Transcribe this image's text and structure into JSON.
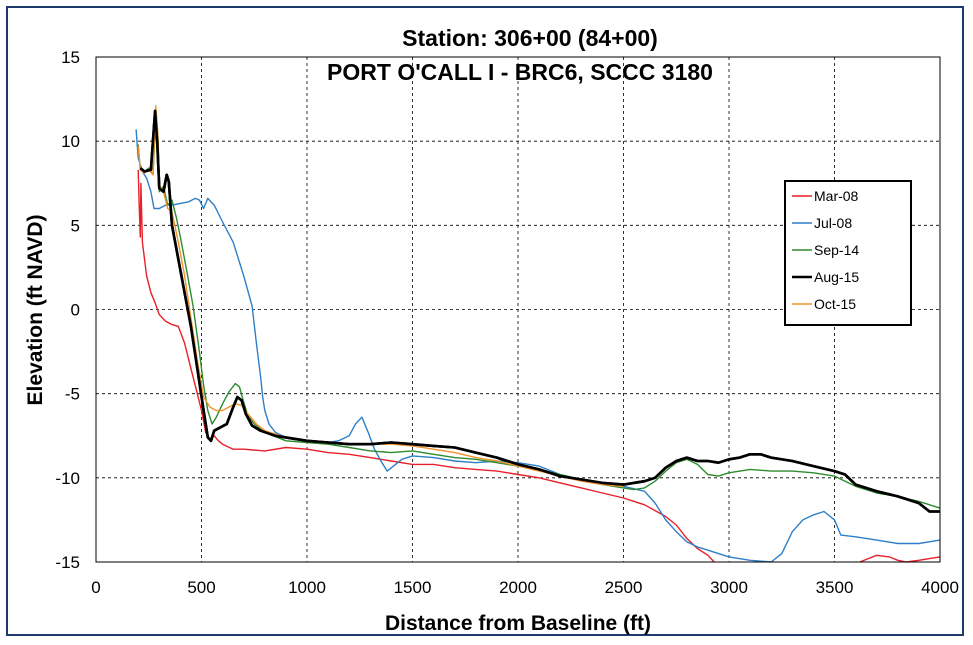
{
  "chart_data": {
    "type": "line",
    "title": "Station:  306+00 (84+00)",
    "subtitle": "PORT O'CALL I - BRC6, SCCC 3180",
    "xlabel": "Distance from Baseline (ft)",
    "ylabel": "Elevation (ft NAVD)",
    "xlim": [
      0,
      4000
    ],
    "ylim": [
      -15,
      15
    ],
    "xticks": [
      0,
      500,
      1000,
      1500,
      2000,
      2500,
      3000,
      3500,
      4000
    ],
    "yticks": [
      -15,
      -10,
      -5,
      0,
      5,
      10,
      15
    ],
    "grid": true,
    "legend_position": "right",
    "series": [
      {
        "name": "Mar-08",
        "color": "#e8202a",
        "width": 1.4,
        "points": [
          [
            200,
            8.3
          ],
          [
            205,
            6.0
          ],
          [
            210,
            4.3
          ],
          [
            213,
            7.5
          ],
          [
            220,
            4.0
          ],
          [
            240,
            2.0
          ],
          [
            260,
            1.0
          ],
          [
            280,
            0.4
          ],
          [
            300,
            -0.3
          ],
          [
            330,
            -0.7
          ],
          [
            360,
            -0.9
          ],
          [
            390,
            -1.0
          ],
          [
            420,
            -2.0
          ],
          [
            450,
            -3.5
          ],
          [
            480,
            -5.0
          ],
          [
            500,
            -6.0
          ],
          [
            520,
            -7.3
          ],
          [
            540,
            -7.7
          ],
          [
            560,
            -7.5
          ],
          [
            580,
            -7.8
          ],
          [
            600,
            -8.0
          ],
          [
            650,
            -8.3
          ],
          [
            700,
            -8.3
          ],
          [
            800,
            -8.4
          ],
          [
            900,
            -8.2
          ],
          [
            1000,
            -8.3
          ],
          [
            1100,
            -8.5
          ],
          [
            1200,
            -8.6
          ],
          [
            1300,
            -8.8
          ],
          [
            1400,
            -9.0
          ],
          [
            1500,
            -9.2
          ],
          [
            1600,
            -9.2
          ],
          [
            1700,
            -9.4
          ],
          [
            1800,
            -9.5
          ],
          [
            1900,
            -9.6
          ],
          [
            2000,
            -9.8
          ],
          [
            2100,
            -10.0
          ],
          [
            2200,
            -10.3
          ],
          [
            2300,
            -10.6
          ],
          [
            2400,
            -10.9
          ],
          [
            2500,
            -11.2
          ],
          [
            2600,
            -11.6
          ],
          [
            2700,
            -12.3
          ],
          [
            2750,
            -12.8
          ],
          [
            2800,
            -13.6
          ],
          [
            2850,
            -14.2
          ],
          [
            2900,
            -14.6
          ],
          [
            2930,
            -15.0
          ]
        ],
        "segments_after": [
          [
            3620,
            -15.0
          ],
          [
            3660,
            -14.8
          ],
          [
            3700,
            -14.6
          ],
          [
            3760,
            -14.7
          ],
          [
            3800,
            -14.9
          ],
          [
            3840,
            -15.0
          ],
          [
            3900,
            -14.9
          ],
          [
            3950,
            -14.8
          ],
          [
            4000,
            -14.7
          ]
        ]
      },
      {
        "name": "Jul-08",
        "color": "#2f7fc8",
        "width": 1.4,
        "points": [
          [
            190,
            10.7
          ],
          [
            200,
            9.0
          ],
          [
            220,
            8.2
          ],
          [
            240,
            7.8
          ],
          [
            260,
            7.0
          ],
          [
            275,
            6.0
          ],
          [
            300,
            6.0
          ],
          [
            330,
            6.2
          ],
          [
            360,
            6.2
          ],
          [
            400,
            6.3
          ],
          [
            440,
            6.4
          ],
          [
            470,
            6.6
          ],
          [
            490,
            6.5
          ],
          [
            510,
            6.0
          ],
          [
            530,
            6.6
          ],
          [
            560,
            6.2
          ],
          [
            600,
            5.2
          ],
          [
            650,
            4.0
          ],
          [
            700,
            2.0
          ],
          [
            740,
            0.2
          ],
          [
            760,
            -2.0
          ],
          [
            780,
            -4.0
          ],
          [
            790,
            -5.2
          ],
          [
            800,
            -6.0
          ],
          [
            820,
            -6.8
          ],
          [
            850,
            -7.3
          ],
          [
            900,
            -7.6
          ],
          [
            1000,
            -7.8
          ],
          [
            1100,
            -7.9
          ],
          [
            1150,
            -7.8
          ],
          [
            1200,
            -7.5
          ],
          [
            1230,
            -6.8
          ],
          [
            1260,
            -6.4
          ],
          [
            1290,
            -7.3
          ],
          [
            1320,
            -8.3
          ],
          [
            1350,
            -9.0
          ],
          [
            1380,
            -9.6
          ],
          [
            1410,
            -9.3
          ],
          [
            1450,
            -8.9
          ],
          [
            1500,
            -8.7
          ],
          [
            1600,
            -8.8
          ],
          [
            1700,
            -9.0
          ],
          [
            1800,
            -9.1
          ],
          [
            1900,
            -9.0
          ],
          [
            2000,
            -9.1
          ],
          [
            2100,
            -9.3
          ],
          [
            2200,
            -9.8
          ],
          [
            2300,
            -10.1
          ],
          [
            2400,
            -10.3
          ],
          [
            2500,
            -10.5
          ],
          [
            2600,
            -10.8
          ],
          [
            2650,
            -11.5
          ],
          [
            2700,
            -12.5
          ],
          [
            2750,
            -13.2
          ],
          [
            2800,
            -13.8
          ],
          [
            2850,
            -14.1
          ],
          [
            2900,
            -14.3
          ],
          [
            2950,
            -14.5
          ],
          [
            3000,
            -14.7
          ],
          [
            3100,
            -14.9
          ],
          [
            3200,
            -15.0
          ],
          [
            3250,
            -14.5
          ],
          [
            3300,
            -13.2
          ],
          [
            3350,
            -12.5
          ],
          [
            3400,
            -12.2
          ],
          [
            3450,
            -12.0
          ],
          [
            3500,
            -12.5
          ],
          [
            3530,
            -13.4
          ],
          [
            3600,
            -13.5
          ],
          [
            3700,
            -13.7
          ],
          [
            3800,
            -13.9
          ],
          [
            3900,
            -13.9
          ],
          [
            4000,
            -13.7
          ]
        ]
      },
      {
        "name": "Sep-14",
        "color": "#2e8b2e",
        "width": 1.4,
        "points": [
          [
            200,
            9.8
          ],
          [
            210,
            8.3
          ],
          [
            230,
            8.2
          ],
          [
            250,
            8.4
          ],
          [
            270,
            8.0
          ],
          [
            285,
            11.8
          ],
          [
            295,
            10.0
          ],
          [
            300,
            7.0
          ],
          [
            320,
            7.3
          ],
          [
            340,
            6.2
          ],
          [
            360,
            6.5
          ],
          [
            380,
            5.5
          ],
          [
            400,
            4.3
          ],
          [
            430,
            2.3
          ],
          [
            460,
            0.2
          ],
          [
            490,
            -2.5
          ],
          [
            510,
            -4.5
          ],
          [
            530,
            -6.0
          ],
          [
            550,
            -6.8
          ],
          [
            570,
            -6.4
          ],
          [
            600,
            -5.6
          ],
          [
            630,
            -4.9
          ],
          [
            660,
            -4.4
          ],
          [
            680,
            -4.6
          ],
          [
            700,
            -5.5
          ],
          [
            720,
            -6.3
          ],
          [
            750,
            -6.8
          ],
          [
            800,
            -7.3
          ],
          [
            900,
            -7.8
          ],
          [
            1000,
            -7.9
          ],
          [
            1100,
            -8.0
          ],
          [
            1200,
            -8.2
          ],
          [
            1300,
            -8.4
          ],
          [
            1400,
            -8.5
          ],
          [
            1500,
            -8.4
          ],
          [
            1600,
            -8.6
          ],
          [
            1700,
            -8.8
          ],
          [
            1800,
            -8.9
          ],
          [
            1900,
            -9.1
          ],
          [
            2000,
            -9.3
          ],
          [
            2100,
            -9.5
          ],
          [
            2200,
            -9.8
          ],
          [
            2300,
            -10.1
          ],
          [
            2400,
            -10.4
          ],
          [
            2500,
            -10.6
          ],
          [
            2550,
            -10.7
          ],
          [
            2600,
            -10.6
          ],
          [
            2650,
            -10.2
          ],
          [
            2700,
            -9.6
          ],
          [
            2750,
            -9.1
          ],
          [
            2800,
            -8.9
          ],
          [
            2850,
            -9.2
          ],
          [
            2900,
            -9.8
          ],
          [
            2950,
            -9.9
          ],
          [
            3000,
            -9.7
          ],
          [
            3100,
            -9.5
          ],
          [
            3200,
            -9.6
          ],
          [
            3300,
            -9.6
          ],
          [
            3400,
            -9.7
          ],
          [
            3500,
            -9.9
          ],
          [
            3600,
            -10.5
          ],
          [
            3700,
            -10.9
          ],
          [
            3800,
            -11.1
          ],
          [
            3900,
            -11.4
          ],
          [
            4000,
            -11.8
          ]
        ]
      },
      {
        "name": "Aug-15",
        "color": "#000000",
        "width": 2.6,
        "points": [
          [
            210,
            8.4
          ],
          [
            230,
            8.2
          ],
          [
            260,
            8.3
          ],
          [
            280,
            11.8
          ],
          [
            290,
            10.0
          ],
          [
            300,
            7.2
          ],
          [
            320,
            7.0
          ],
          [
            335,
            8.0
          ],
          [
            345,
            7.6
          ],
          [
            360,
            5.0
          ],
          [
            390,
            3.0
          ],
          [
            420,
            1.0
          ],
          [
            450,
            -1.0
          ],
          [
            480,
            -3.5
          ],
          [
            510,
            -6.0
          ],
          [
            530,
            -7.6
          ],
          [
            545,
            -7.8
          ],
          [
            560,
            -7.2
          ],
          [
            590,
            -7.0
          ],
          [
            620,
            -6.8
          ],
          [
            650,
            -5.8
          ],
          [
            670,
            -5.2
          ],
          [
            690,
            -5.4
          ],
          [
            710,
            -6.2
          ],
          [
            740,
            -6.9
          ],
          [
            780,
            -7.2
          ],
          [
            850,
            -7.5
          ],
          [
            1000,
            -7.8
          ],
          [
            1100,
            -7.9
          ],
          [
            1200,
            -8.0
          ],
          [
            1300,
            -8.0
          ],
          [
            1400,
            -7.9
          ],
          [
            1500,
            -8.0
          ],
          [
            1600,
            -8.1
          ],
          [
            1700,
            -8.2
          ],
          [
            1800,
            -8.5
          ],
          [
            1900,
            -8.8
          ],
          [
            2000,
            -9.2
          ],
          [
            2100,
            -9.5
          ],
          [
            2200,
            -9.9
          ],
          [
            2300,
            -10.1
          ],
          [
            2400,
            -10.3
          ],
          [
            2500,
            -10.4
          ],
          [
            2600,
            -10.2
          ],
          [
            2650,
            -10.0
          ],
          [
            2700,
            -9.4
          ],
          [
            2750,
            -9.0
          ],
          [
            2800,
            -8.8
          ],
          [
            2850,
            -9.0
          ],
          [
            2900,
            -9.0
          ],
          [
            2950,
            -9.1
          ],
          [
            3000,
            -8.9
          ],
          [
            3050,
            -8.8
          ],
          [
            3100,
            -8.6
          ],
          [
            3150,
            -8.6
          ],
          [
            3200,
            -8.8
          ],
          [
            3300,
            -9.0
          ],
          [
            3400,
            -9.3
          ],
          [
            3500,
            -9.6
          ],
          [
            3550,
            -9.8
          ],
          [
            3600,
            -10.4
          ],
          [
            3700,
            -10.8
          ],
          [
            3800,
            -11.1
          ],
          [
            3850,
            -11.3
          ],
          [
            3900,
            -11.5
          ],
          [
            3950,
            -12.0
          ],
          [
            4000,
            -12.0
          ]
        ]
      },
      {
        "name": "Oct-15",
        "color": "#f0932b",
        "width": 1.4,
        "points": [
          [
            200,
            9.7
          ],
          [
            210,
            8.3
          ],
          [
            230,
            8.1
          ],
          [
            250,
            8.3
          ],
          [
            270,
            8.0
          ],
          [
            283,
            12.1
          ],
          [
            293,
            10.5
          ],
          [
            300,
            7.4
          ],
          [
            320,
            7.0
          ],
          [
            340,
            6.0
          ],
          [
            360,
            5.8
          ],
          [
            390,
            4.0
          ],
          [
            420,
            2.0
          ],
          [
            450,
            -0.5
          ],
          [
            480,
            -3.0
          ],
          [
            510,
            -5.2
          ],
          [
            540,
            -5.8
          ],
          [
            570,
            -6.0
          ],
          [
            600,
            -6.0
          ],
          [
            630,
            -5.8
          ],
          [
            660,
            -5.6
          ],
          [
            690,
            -5.7
          ],
          [
            720,
            -6.2
          ],
          [
            760,
            -6.8
          ],
          [
            800,
            -7.2
          ],
          [
            900,
            -7.6
          ],
          [
            1000,
            -7.8
          ],
          [
            1100,
            -7.9
          ],
          [
            1200,
            -8.0
          ],
          [
            1300,
            -8.0
          ],
          [
            1400,
            -8.0
          ],
          [
            1500,
            -8.1
          ],
          [
            1600,
            -8.3
          ],
          [
            1700,
            -8.5
          ],
          [
            1800,
            -8.8
          ],
          [
            1900,
            -9.0
          ],
          [
            2000,
            -9.3
          ],
          [
            2100,
            -9.6
          ],
          [
            2200,
            -9.9
          ],
          [
            2300,
            -10.2
          ],
          [
            2400,
            -10.4
          ],
          [
            2500,
            -10.5
          ]
        ]
      }
    ]
  }
}
